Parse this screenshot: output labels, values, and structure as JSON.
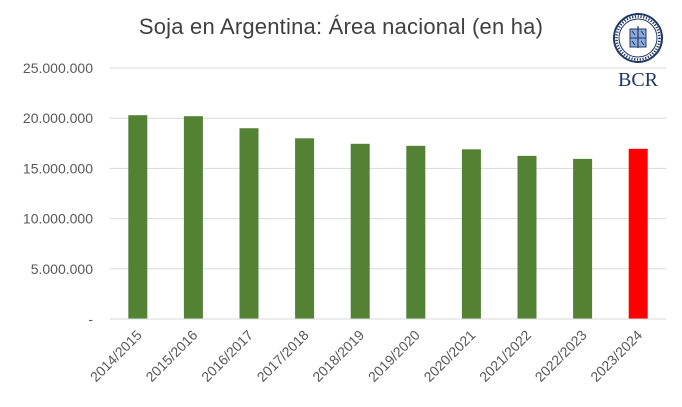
{
  "chart_data": {
    "type": "bar",
    "title": "Soja en Argentina: Área nacional (en ha)",
    "categories": [
      "2014/2015",
      "2015/2016",
      "2016/2017",
      "2017/2018",
      "2018/2019",
      "2019/2020",
      "2020/2021",
      "2021/2022",
      "2022/2023",
      "2023/2024"
    ],
    "values": [
      20300000,
      20200000,
      19000000,
      18000000,
      17450000,
      17250000,
      16900000,
      16250000,
      15950000,
      16950000
    ],
    "bar_colors": [
      "#548235",
      "#548235",
      "#548235",
      "#548235",
      "#548235",
      "#548235",
      "#548235",
      "#548235",
      "#548235",
      "#ff0000"
    ],
    "ylim": [
      0,
      25000000
    ],
    "yticks": [
      0,
      5000000,
      10000000,
      15000000,
      20000000,
      25000000
    ],
    "ytick_labels": [
      "-",
      "5.000.000",
      "10.000.000",
      "15.000.000",
      "20.000.000",
      "25.000.000"
    ],
    "xlabel": "",
    "ylabel": "",
    "grid": true,
    "legend": "none"
  },
  "logo": {
    "text": "BCR",
    "color": "#1f3864"
  }
}
